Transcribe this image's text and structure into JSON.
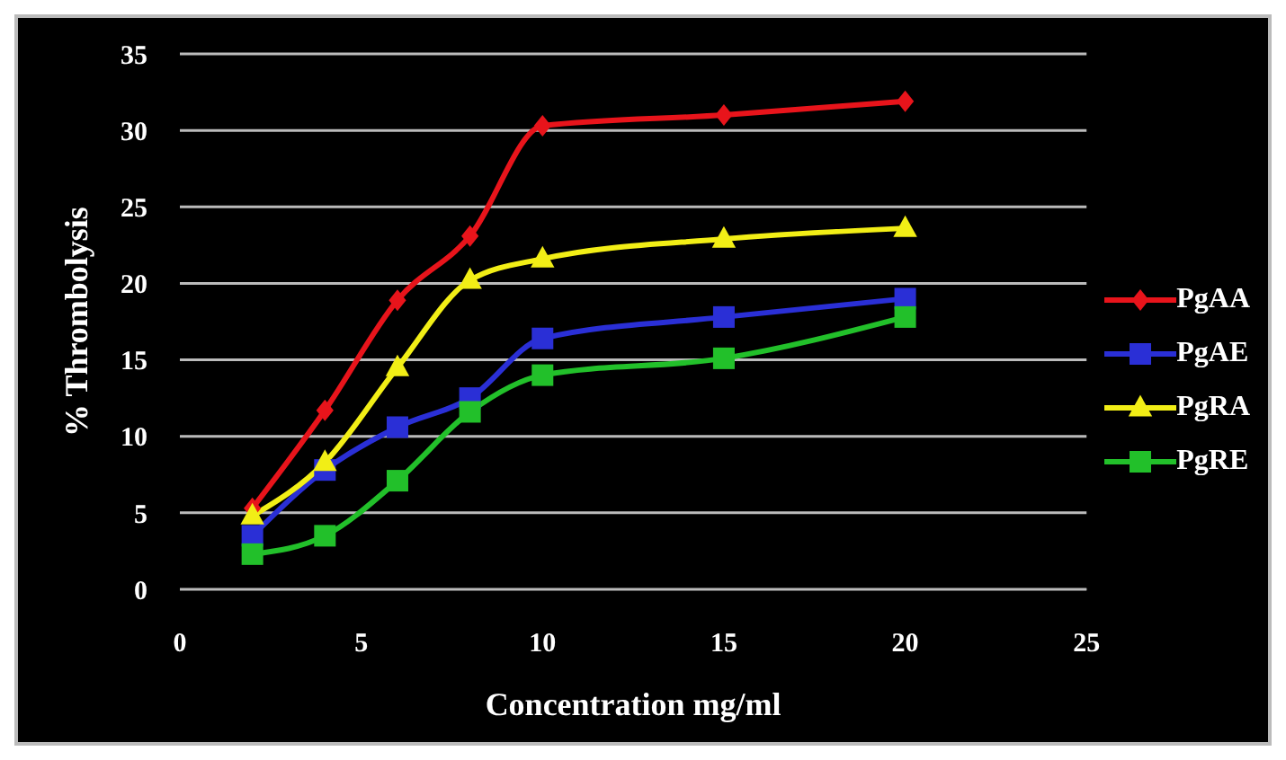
{
  "chart_data": {
    "type": "line",
    "xlabel": "Concentration mg/ml",
    "ylabel": "% Thrombolysis",
    "x": [
      2,
      4,
      6,
      8,
      10,
      15,
      20
    ],
    "series": [
      {
        "name": "PgAA",
        "color": "#e8141b",
        "marker": "diamond",
        "values": [
          5.3,
          11.7,
          18.9,
          23.1,
          30.3,
          31.0,
          31.9
        ]
      },
      {
        "name": "PgAE",
        "color": "#2a2fd6",
        "marker": "square",
        "values": [
          3.5,
          7.8,
          10.6,
          12.5,
          16.4,
          17.8,
          19.0
        ]
      },
      {
        "name": "PgRA",
        "color": "#f2ee16",
        "marker": "triangle",
        "values": [
          4.8,
          8.3,
          14.5,
          20.2,
          21.6,
          22.9,
          23.6
        ]
      },
      {
        "name": "PgRE",
        "color": "#22c02a",
        "marker": "square",
        "values": [
          2.3,
          3.5,
          7.1,
          11.6,
          14.0,
          15.1,
          17.8
        ]
      }
    ],
    "xlim": [
      0,
      25
    ],
    "xticks": [
      0,
      5,
      10,
      15,
      20,
      25
    ],
    "ylim": [
      0,
      35
    ],
    "yticks": [
      0,
      5,
      10,
      15,
      20,
      25,
      30,
      35
    ],
    "grid": "y",
    "legend": "right"
  }
}
